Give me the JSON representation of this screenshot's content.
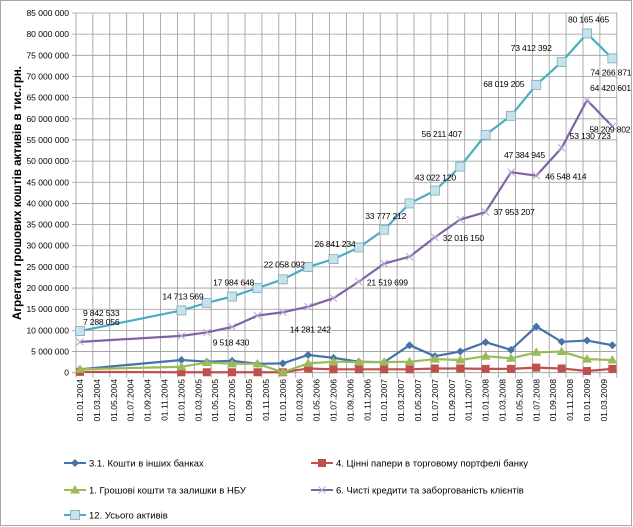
{
  "chart_data": {
    "type": "line",
    "title": "",
    "xlabel": "",
    "ylabel": "Агрегати грошових коштів активів в тис.грн.",
    "ylim": [
      0,
      85000000
    ],
    "ytick_step": 5000000,
    "y_ticks": [
      "0",
      "5 000 000",
      "10 000 000",
      "15 000 000",
      "20 000 000",
      "25 000 000",
      "30 000 000",
      "35 000 000",
      "40 000 000",
      "45 000 000",
      "50 000 000",
      "55 000 000",
      "60 000 000",
      "65 000 000",
      "70 000 000",
      "75 000 000",
      "80 000 000",
      "85 000 000"
    ],
    "x_ticks": [
      "01.01.2004",
      "01.03.2004",
      "01.05.2004",
      "01.07.2004",
      "01.09.2004",
      "01.11.2004",
      "01.01.2005",
      "01.03.2005",
      "01.05.2005",
      "01.07.2005",
      "01.09.2005",
      "01.11.2005",
      "01.01.2006",
      "01.03.2006",
      "01.05.2006",
      "01.07.2006",
      "01.09.2006",
      "01.11.2006",
      "01.01.2007",
      "01.03.2007",
      "01.05.2007",
      "01.07.2007",
      "01.09.2007",
      "01.11.2007",
      "01.01.2008",
      "01.03.2008",
      "01.05.2008",
      "01.07.2008",
      "01.09.2008",
      "01.11.2008",
      "01.01.2009",
      "01.03.2009"
    ],
    "x": [
      "01.01.2004",
      "01.01.2005",
      "01.04.2005",
      "01.07.2005",
      "01.10.2005",
      "01.01.2006",
      "01.04.2006",
      "01.07.2006",
      "01.10.2006",
      "01.01.2007",
      "01.04.2007",
      "01.07.2007",
      "01.10.2007",
      "01.01.2008",
      "01.04.2008",
      "01.07.2008",
      "01.10.2008",
      "01.01.2009",
      "01.04.2009"
    ],
    "grid": true,
    "legend_position": "bottom",
    "series": [
      {
        "name": "3.1. Кошти в інших банках",
        "color": "#4572A7",
        "marker": "diamond",
        "values": [
          800000,
          3000000,
          2600000,
          2800000,
          2100000,
          2200000,
          4200000,
          3500000,
          2600000,
          2500000,
          6500000,
          3900000,
          5000000,
          7200000,
          5400000,
          10900000,
          7300000,
          7600000,
          6500000
        ],
        "labels": []
      },
      {
        "name": "4. Цінні папери в торговому портфелі банку",
        "color": "#C0504D",
        "marker": "square",
        "values": [
          200000,
          100000,
          100000,
          100000,
          100000,
          100000,
          1000000,
          800000,
          800000,
          800000,
          800000,
          1000000,
          1000000,
          900000,
          900000,
          1200000,
          1000000,
          400000,
          900000
        ],
        "labels": []
      },
      {
        "name": "1. Грошові кошти та залишки в НБУ",
        "color": "#9BBB59",
        "marker": "triangle",
        "values": [
          800000,
          1400000,
          2400000,
          2100000,
          2100000,
          100000,
          2200000,
          2600000,
          2500000,
          2500000,
          2600000,
          3200000,
          3000000,
          3900000,
          3400000,
          4800000,
          5000000,
          3200000,
          3000000
        ],
        "labels": []
      },
      {
        "name": "6. Чисті кредити та заборгованість клієнтів",
        "color": "#8064A2",
        "marker": "x",
        "values": [
          7288056,
          8700000,
          9518430,
          10800000,
          13500000,
          14281242,
          15600000,
          17600000,
          21519699,
          25800000,
          27400000,
          32016150,
          36200000,
          37953207,
          47384945,
          46548414,
          53130723,
          64420601,
          58209802
        ],
        "labels": [
          "7 288 056",
          null,
          "9 518 430",
          null,
          null,
          "14 281 242",
          null,
          null,
          "21 519 699",
          null,
          null,
          "32 016 150",
          null,
          "37 953 207",
          "47 384 945",
          "46 548 414",
          "53 130 723",
          "64 420 601",
          "58 209 802"
        ]
      },
      {
        "name": "12. Усього активів",
        "color": "#4BACC6",
        "marker": "square-light",
        "values": [
          9842533,
          14713569,
          16500000,
          17984648,
          20000000,
          22058092,
          25000000,
          26841234,
          29600000,
          33777212,
          40000000,
          43022120,
          48700000,
          56211407,
          60700000,
          68019205,
          73412392,
          80165465,
          74266871
        ],
        "labels": [
          "9 842 533",
          "14 713 569",
          null,
          "17 984 648",
          null,
          "22 058 092",
          null,
          "26 841 234",
          null,
          "33 777 212",
          null,
          "43 022 120",
          null,
          "56 211 407",
          null,
          "68 019 205",
          "73 412 392",
          "80 165 465",
          "74 266 871"
        ]
      }
    ]
  }
}
